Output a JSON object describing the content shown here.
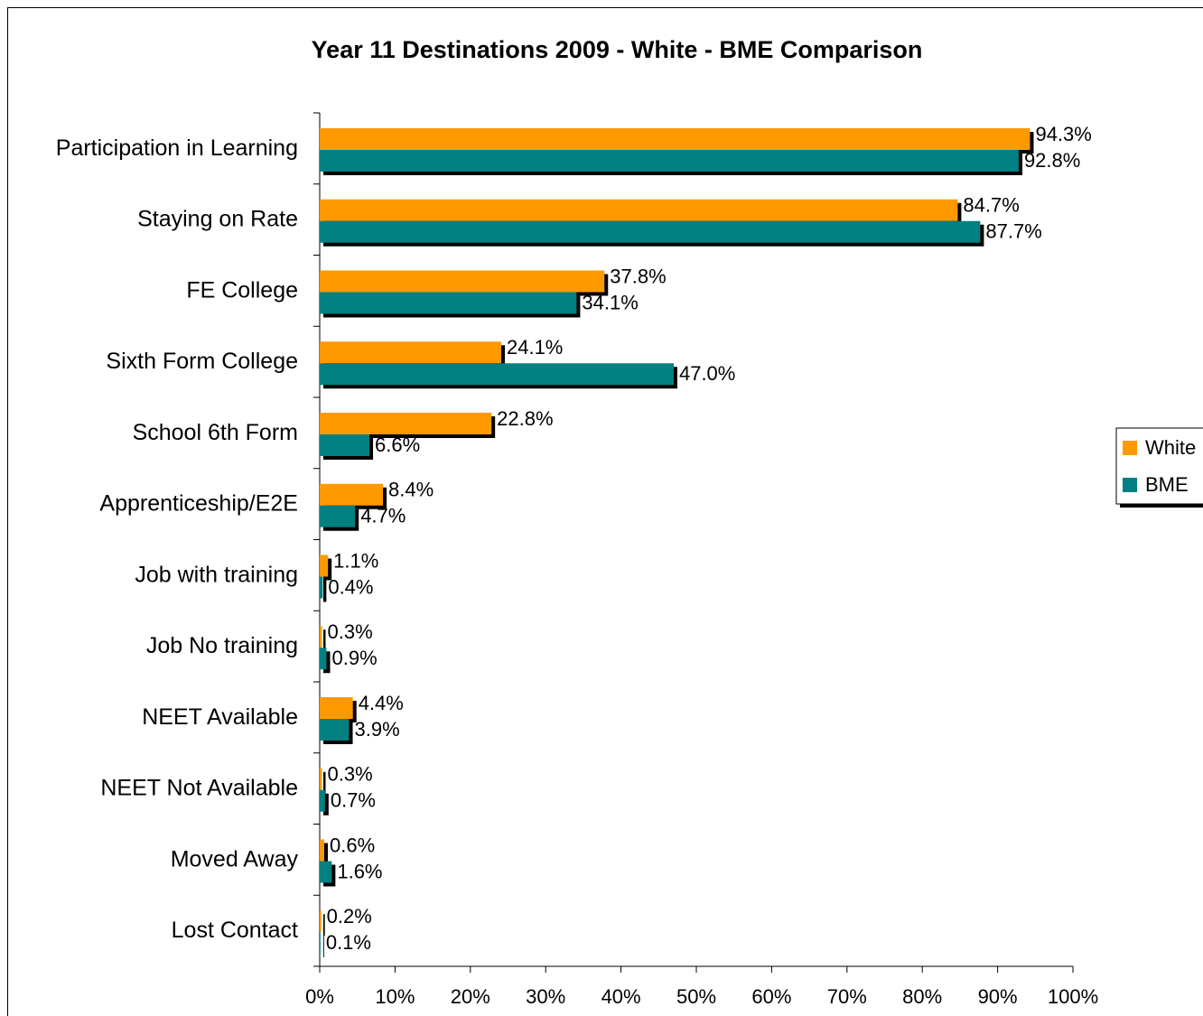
{
  "chart_data": {
    "type": "hbar",
    "title": "Year 11 Destinations 2009 - White - BME Comparison",
    "categories": [
      "Participation in Learning",
      "Staying on Rate",
      "FE College",
      "Sixth Form College",
      "School 6th Form",
      "Apprenticeship/E2E",
      "Job with training",
      "Job No training",
      "NEET Available",
      "NEET Not Available",
      "Moved Away",
      "Lost Contact"
    ],
    "series": [
      {
        "name": "White",
        "color": "#ff9900",
        "values": [
          94.3,
          84.7,
          37.8,
          24.1,
          22.8,
          8.4,
          1.1,
          0.3,
          4.4,
          0.3,
          0.6,
          0.2
        ],
        "value_labels": [
          "94.3%",
          "84.7%",
          "37.8%",
          "24.1%",
          "22.8%",
          "8.4%",
          "1.1%",
          "0.3%",
          "4.4%",
          "0.3%",
          "0.6%",
          "0.2%"
        ]
      },
      {
        "name": "BME",
        "color": "#008080",
        "values": [
          92.8,
          87.7,
          34.1,
          47.0,
          6.6,
          4.7,
          0.4,
          0.9,
          3.9,
          0.7,
          1.6,
          0.1
        ],
        "value_labels": [
          "92.8%",
          "87.7%",
          "34.1%",
          "47.0%",
          "6.6%",
          "4.7%",
          "0.4%",
          "0.9%",
          "3.9%",
          "0.7%",
          "1.6%",
          "0.1%"
        ]
      }
    ],
    "xlim": [
      0,
      100
    ],
    "xticks": [
      {
        "value": 0,
        "label": "0%"
      },
      {
        "value": 10,
        "label": "10%"
      },
      {
        "value": 20,
        "label": "20%"
      },
      {
        "value": 30,
        "label": "30%"
      },
      {
        "value": 40,
        "label": "40%"
      },
      {
        "value": 50,
        "label": "50%"
      },
      {
        "value": 60,
        "label": "60%"
      },
      {
        "value": 70,
        "label": "70%"
      },
      {
        "value": 80,
        "label": "80%"
      },
      {
        "value": 90,
        "label": "90%"
      },
      {
        "value": 100,
        "label": "100%"
      }
    ],
    "legend": "right"
  }
}
